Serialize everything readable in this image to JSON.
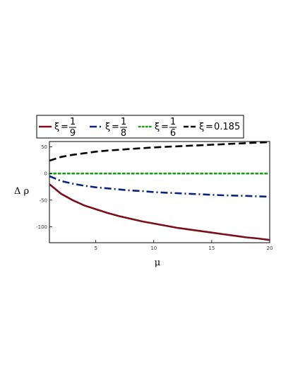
{
  "chart_data": {
    "type": "line",
    "xlabel": "μ",
    "ylabel": "Δ ρ",
    "xlim": [
      1,
      20
    ],
    "ylim": [
      -130,
      60
    ],
    "x_ticks": [
      5,
      10,
      15,
      20
    ],
    "y_ticks": [
      50,
      0,
      -50,
      -100
    ],
    "grid": false,
    "legend_position": "top",
    "x": [
      1,
      2,
      3,
      4,
      5,
      6,
      7,
      8,
      9,
      10,
      11,
      12,
      13,
      14,
      15,
      16,
      17,
      18,
      19,
      20
    ],
    "series": [
      {
        "name": "ξ = 1/9",
        "legend": {
          "symbol": "ξ",
          "eq": "=",
          "num": "1",
          "den": "9",
          "text": ""
        },
        "color": "#7a0e1a",
        "style": "solid",
        "values": [
          -20,
          -38,
          -50,
          -60,
          -67,
          -74,
          -80,
          -85,
          -90,
          -94,
          -98,
          -102,
          -105,
          -108,
          -111,
          -114,
          -117,
          -120,
          -122,
          -125
        ]
      },
      {
        "name": "ξ = 1/8",
        "legend": {
          "symbol": "ξ",
          "eq": "=",
          "num": "1",
          "den": "8",
          "text": ""
        },
        "color": "#0a2580",
        "style": "dashdot",
        "values": [
          -5,
          -14,
          -19,
          -23,
          -26,
          -28,
          -30,
          -32,
          -33,
          -35,
          -36,
          -37,
          -38,
          -39,
          -40,
          -41,
          -41.5,
          -42,
          -43,
          -43.5
        ]
      },
      {
        "name": "ξ = 1/6",
        "legend": {
          "symbol": "ξ",
          "eq": "=",
          "num": "1",
          "den": "6",
          "text": ""
        },
        "color": "#1e9a1e",
        "style": "dotted",
        "values": [
          0,
          0,
          0,
          0,
          0,
          0,
          0,
          0,
          0,
          0,
          0,
          0,
          0,
          0,
          0,
          0,
          0,
          0,
          0,
          0
        ]
      },
      {
        "name": "ξ = 0.185",
        "legend": {
          "symbol": "ξ",
          "eq": "=",
          "num": "",
          "den": "",
          "text": "0.185"
        },
        "color": "#000000",
        "style": "dashed",
        "values": [
          24,
          31,
          35,
          38,
          41,
          43,
          44.5,
          46,
          47.5,
          49,
          50,
          51,
          52,
          53,
          54,
          55,
          56,
          57,
          58,
          59
        ]
      }
    ]
  }
}
